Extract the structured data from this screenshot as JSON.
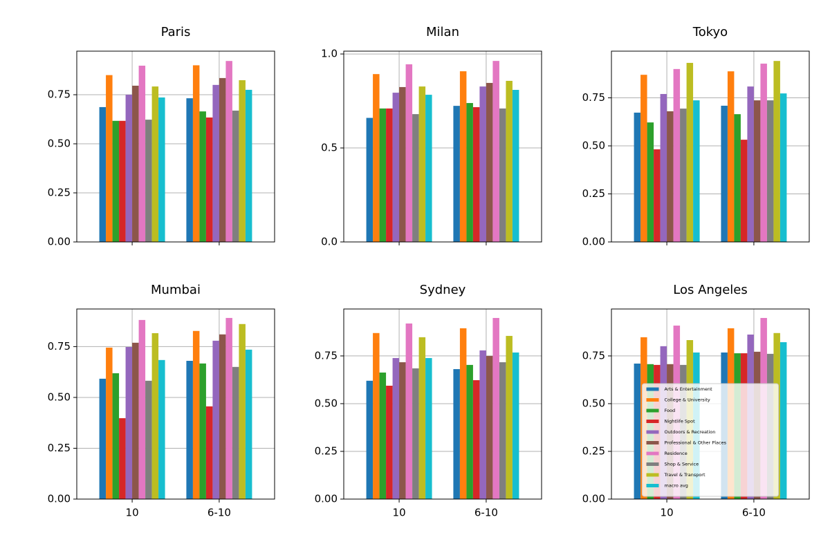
{
  "chart_data": [
    {
      "type": "bar",
      "title": "Paris",
      "categories": [
        null,
        null
      ],
      "grid": true,
      "ylim": [
        0,
        0.972
      ],
      "yticks": [
        {
          "value": 0,
          "label": "0.00"
        },
        {
          "value": 0.25,
          "label": "0.25"
        },
        {
          "value": 0.5,
          "label": "0.50"
        },
        {
          "value": 0.75,
          "label": "0.75"
        }
      ],
      "series": [
        {
          "color": "#1f77b4",
          "values": [
            0.687,
            0.732
          ]
        },
        {
          "color": "#ff7f0e",
          "values": [
            0.85,
            0.9
          ]
        },
        {
          "color": "#2ca02c",
          "values": [
            0.617,
            0.665
          ]
        },
        {
          "color": "#d62728",
          "values": [
            0.617,
            0.634
          ]
        },
        {
          "color": "#9467bd",
          "values": [
            0.75,
            0.8
          ]
        },
        {
          "color": "#8c564b",
          "values": [
            0.796,
            0.835
          ]
        },
        {
          "color": "#e377c2",
          "values": [
            0.898,
            0.922
          ]
        },
        {
          "color": "#7f7f7f",
          "values": [
            0.623,
            0.669
          ]
        },
        {
          "color": "#bcbd22",
          "values": [
            0.792,
            0.824
          ]
        },
        {
          "color": "#17becf",
          "values": [
            0.736,
            0.775
          ]
        }
      ]
    },
    {
      "type": "bar",
      "title": "Milan",
      "categories": [
        null,
        null
      ],
      "grid": true,
      "ylim": [
        0,
        1.015
      ],
      "yticks": [
        {
          "value": 0,
          "label": "0.0"
        },
        {
          "value": 0.5,
          "label": "0.5"
        },
        {
          "value": 1,
          "label": "1.0"
        }
      ],
      "series": [
        {
          "color": "#1f77b4",
          "values": [
            0.66,
            0.724
          ]
        },
        {
          "color": "#ff7f0e",
          "values": [
            0.893,
            0.908
          ]
        },
        {
          "color": "#2ca02c",
          "values": [
            0.71,
            0.739
          ]
        },
        {
          "color": "#d62728",
          "values": [
            0.71,
            0.717
          ]
        },
        {
          "color": "#9467bd",
          "values": [
            0.794,
            0.827
          ]
        },
        {
          "color": "#8c564b",
          "values": [
            0.824,
            0.846
          ]
        },
        {
          "color": "#e377c2",
          "values": [
            0.945,
            0.963
          ]
        },
        {
          "color": "#7f7f7f",
          "values": [
            0.68,
            0.71
          ]
        },
        {
          "color": "#bcbd22",
          "values": [
            0.827,
            0.857
          ]
        },
        {
          "color": "#17becf",
          "values": [
            0.783,
            0.809
          ]
        }
      ]
    },
    {
      "type": "bar",
      "title": "Tokyo",
      "categories": [
        null,
        null
      ],
      "grid": true,
      "ylim": [
        0,
        0.993
      ],
      "yticks": [
        {
          "value": 0,
          "label": "0.00"
        },
        {
          "value": 0.25,
          "label": "0.25"
        },
        {
          "value": 0.5,
          "label": "0.50"
        },
        {
          "value": 0.75,
          "label": "0.75"
        }
      ],
      "series": [
        {
          "color": "#1f77b4",
          "values": [
            0.673,
            0.709
          ]
        },
        {
          "color": "#ff7f0e",
          "values": [
            0.87,
            0.888
          ]
        },
        {
          "color": "#2ca02c",
          "values": [
            0.622,
            0.665
          ]
        },
        {
          "color": "#d62728",
          "values": [
            0.482,
            0.532
          ]
        },
        {
          "color": "#9467bd",
          "values": [
            0.77,
            0.809
          ]
        },
        {
          "color": "#8c564b",
          "values": [
            0.68,
            0.737
          ]
        },
        {
          "color": "#e377c2",
          "values": [
            0.9,
            0.928
          ]
        },
        {
          "color": "#7f7f7f",
          "values": [
            0.694,
            0.737
          ]
        },
        {
          "color": "#bcbd22",
          "values": [
            0.932,
            0.942
          ]
        },
        {
          "color": "#17becf",
          "values": [
            0.737,
            0.773
          ]
        }
      ]
    },
    {
      "type": "bar",
      "title": "Mumbai",
      "categories": [
        "10",
        "6-10"
      ],
      "grid": true,
      "ylim": [
        0,
        0.935
      ],
      "yticks": [
        {
          "value": 0,
          "label": "0.00"
        },
        {
          "value": 0.25,
          "label": "0.25"
        },
        {
          "value": 0.5,
          "label": "0.50"
        },
        {
          "value": 0.75,
          "label": "0.75"
        }
      ],
      "series": [
        {
          "color": "#1f77b4",
          "values": [
            0.592,
            0.68
          ]
        },
        {
          "color": "#ff7f0e",
          "values": [
            0.745,
            0.827
          ]
        },
        {
          "color": "#2ca02c",
          "values": [
            0.619,
            0.667
          ]
        },
        {
          "color": "#d62728",
          "values": [
            0.398,
            0.456
          ]
        },
        {
          "color": "#9467bd",
          "values": [
            0.748,
            0.779
          ]
        },
        {
          "color": "#8c564b",
          "values": [
            0.769,
            0.81
          ]
        },
        {
          "color": "#e377c2",
          "values": [
            0.881,
            0.891
          ]
        },
        {
          "color": "#7f7f7f",
          "values": [
            0.582,
            0.65
          ]
        },
        {
          "color": "#bcbd22",
          "values": [
            0.816,
            0.861
          ]
        },
        {
          "color": "#17becf",
          "values": [
            0.684,
            0.735
          ]
        }
      ]
    },
    {
      "type": "bar",
      "title": "Sydney",
      "categories": [
        "10",
        "6-10"
      ],
      "grid": true,
      "ylim": [
        0,
        0.996
      ],
      "yticks": [
        {
          "value": 0,
          "label": "0.00"
        },
        {
          "value": 0.25,
          "label": "0.25"
        },
        {
          "value": 0.5,
          "label": "0.50"
        },
        {
          "value": 0.75,
          "label": "0.75"
        }
      ],
      "series": [
        {
          "color": "#1f77b4",
          "values": [
            0.62,
            0.681
          ]
        },
        {
          "color": "#ff7f0e",
          "values": [
            0.87,
            0.895
          ]
        },
        {
          "color": "#2ca02c",
          "values": [
            0.663,
            0.703
          ]
        },
        {
          "color": "#d62728",
          "values": [
            0.594,
            0.623
          ]
        },
        {
          "color": "#9467bd",
          "values": [
            0.739,
            0.779
          ]
        },
        {
          "color": "#8c564b",
          "values": [
            0.717,
            0.75
          ]
        },
        {
          "color": "#e377c2",
          "values": [
            0.92,
            0.949
          ]
        },
        {
          "color": "#7f7f7f",
          "values": [
            0.685,
            0.717
          ]
        },
        {
          "color": "#bcbd22",
          "values": [
            0.848,
            0.855
          ]
        },
        {
          "color": "#17becf",
          "values": [
            0.739,
            0.768
          ]
        }
      ]
    },
    {
      "type": "bar",
      "title": "Los Angeles",
      "categories": [
        "10",
        "6-10"
      ],
      "grid": true,
      "legend": "lower center",
      "ylim": [
        0,
        0.996
      ],
      "yticks": [
        {
          "value": 0,
          "label": "0.00"
        },
        {
          "value": 0.25,
          "label": "0.25"
        },
        {
          "value": 0.5,
          "label": "0.50"
        },
        {
          "value": 0.75,
          "label": "0.75"
        }
      ],
      "series": [
        {
          "name": "Arts & Entertainment",
          "color": "#1f77b4",
          "values": [
            0.71,
            0.768
          ]
        },
        {
          "name": "College & University",
          "color": "#ff7f0e",
          "values": [
            0.848,
            0.895
          ]
        },
        {
          "name": "Food",
          "color": "#2ca02c",
          "values": [
            0.707,
            0.764
          ]
        },
        {
          "name": "Nightlife Spot",
          "color": "#d62728",
          "values": [
            0.703,
            0.764
          ]
        },
        {
          "name": "Outdoors & Recreation",
          "color": "#9467bd",
          "values": [
            0.801,
            0.862
          ]
        },
        {
          "name": "Professional & Other Places",
          "color": "#8c564b",
          "values": [
            0.707,
            0.772
          ]
        },
        {
          "name": "Residence",
          "color": "#e377c2",
          "values": [
            0.909,
            0.949
          ]
        },
        {
          "name": "Shop & Service",
          "color": "#7f7f7f",
          "values": [
            0.703,
            0.761
          ]
        },
        {
          "name": "Travel & Transport",
          "color": "#bcbd22",
          "values": [
            0.833,
            0.87
          ]
        },
        {
          "name": "macro avg",
          "color": "#17becf",
          "values": [
            0.768,
            0.822
          ]
        }
      ]
    }
  ]
}
